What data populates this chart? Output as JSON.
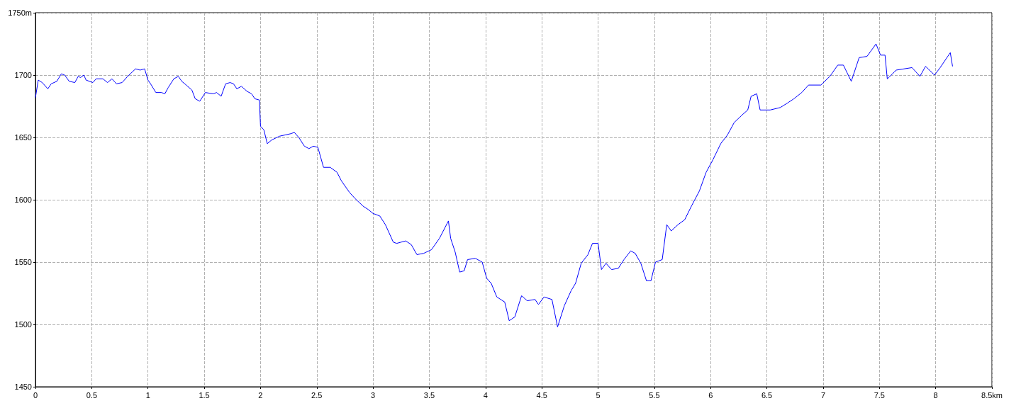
{
  "chart_data": {
    "type": "line",
    "xlim": [
      0,
      8.5
    ],
    "ylim": [
      1450,
      1750
    ],
    "xticks": [
      0,
      0.5,
      1,
      1.5,
      2,
      2.5,
      3,
      3.5,
      4,
      4.5,
      5,
      5.5,
      6,
      6.5,
      7,
      7.5,
      8,
      {
        "value": 8.5,
        "label": "8.5km"
      }
    ],
    "yticks": [
      1450,
      1500,
      1550,
      1600,
      1650,
      1700,
      {
        "value": 1750,
        "label": "1750m"
      }
    ],
    "grid": true,
    "marker": "none",
    "line_style": "solid",
    "series": [
      {
        "color": "#0000ff",
        "x": [
          0,
          0.025,
          0.06,
          0.11,
          0.14,
          0.19,
          0.23,
          0.26,
          0.3,
          0.35,
          0.38,
          0.4,
          0.43,
          0.45,
          0.51,
          0.54,
          0.6,
          0.64,
          0.68,
          0.72,
          0.77,
          0.82,
          0.89,
          0.93,
          0.97,
          1,
          1.03,
          1.07,
          1.12,
          1.15,
          1.18,
          1.23,
          1.27,
          1.3,
          1.34,
          1.39,
          1.42,
          1.46,
          1.51,
          1.58,
          1.61,
          1.65,
          1.69,
          1.73,
          1.76,
          1.79,
          1.83,
          1.88,
          1.92,
          1.95,
          1.99,
          2,
          2.03,
          2.06,
          2.1,
          2.17,
          2.27,
          2.3,
          2.34,
          2.39,
          2.43,
          2.47,
          2.51,
          2.56,
          2.62,
          2.68,
          2.72,
          2.79,
          2.84,
          2.91,
          2.96,
          3,
          3.06,
          3.11,
          3.18,
          3.21,
          3.25,
          3.29,
          3.34,
          3.39,
          3.45,
          3.52,
          3.59,
          3.67,
          3.69,
          3.73,
          3.77,
          3.81,
          3.84,
          3.91,
          3.97,
          4.01,
          4.05,
          4.1,
          4.17,
          4.21,
          4.26,
          4.32,
          4.37,
          4.44,
          4.47,
          4.52,
          4.59,
          4.64,
          4.7,
          4.76,
          4.8,
          4.85,
          4.91,
          4.95,
          5,
          5.03,
          5.07,
          5.12,
          5.18,
          5.23,
          5.29,
          5.33,
          5.38,
          5.43,
          5.47,
          5.51,
          5.57,
          5.61,
          5.65,
          5.71,
          5.77,
          5.83,
          5.9,
          5.96,
          6.02,
          6.09,
          6.15,
          6.21,
          6.28,
          6.33,
          6.36,
          6.41,
          6.44,
          6.53,
          6.62,
          6.69,
          6.74,
          6.81,
          6.87,
          6.98,
          7.06,
          7.13,
          7.18,
          7.25,
          7.32,
          7.39,
          7.47,
          7.51,
          7.55,
          7.57,
          7.65,
          7.79,
          7.86,
          7.91,
          7.99,
          8.04,
          8.13,
          8.15
        ],
        "values": [
          1682,
          1696,
          1694,
          1689,
          1693,
          1695,
          1701,
          1700,
          1695,
          1694,
          1699,
          1698,
          1700,
          1696,
          1694,
          1697,
          1697,
          1694,
          1697,
          1693,
          1694,
          1699,
          1705,
          1704,
          1705,
          1696,
          1692,
          1686,
          1686,
          1685,
          1690,
          1697,
          1699,
          1695,
          1692,
          1688,
          1681,
          1679,
          1686,
          1685,
          1686,
          1683,
          1693,
          1694,
          1693,
          1689,
          1691,
          1687,
          1685,
          1681,
          1680,
          1659,
          1656,
          1645,
          1648,
          1651,
          1653,
          1654,
          1650,
          1643,
          1641,
          1643,
          1642,
          1626,
          1626,
          1622,
          1615,
          1606,
          1601,
          1595,
          1592,
          1589,
          1587,
          1580,
          1566,
          1565,
          1566,
          1567,
          1564,
          1556,
          1557,
          1560,
          1569,
          1583,
          1569,
          1558,
          1542,
          1543,
          1552,
          1553,
          1550,
          1537,
          1533,
          1522,
          1518,
          1503,
          1506,
          1523,
          1519,
          1520,
          1516,
          1522,
          1520,
          1498,
          1515,
          1527,
          1533,
          1549,
          1556,
          1565,
          1565,
          1544,
          1549,
          1544,
          1545,
          1552,
          1559,
          1557,
          1549,
          1535,
          1535,
          1550,
          1552,
          1580,
          1575,
          1580,
          1584,
          1595,
          1607,
          1622,
          1632,
          1645,
          1652,
          1662,
          1668,
          1672,
          1683,
          1685,
          1672,
          1672,
          1674,
          1678,
          1681,
          1686,
          1692,
          1692,
          1699,
          1708,
          1708,
          1695,
          1714,
          1715,
          1725,
          1716,
          1716,
          1697,
          1704,
          1706,
          1699,
          1707,
          1700,
          1706,
          1718,
          1707
        ]
      }
    ]
  }
}
